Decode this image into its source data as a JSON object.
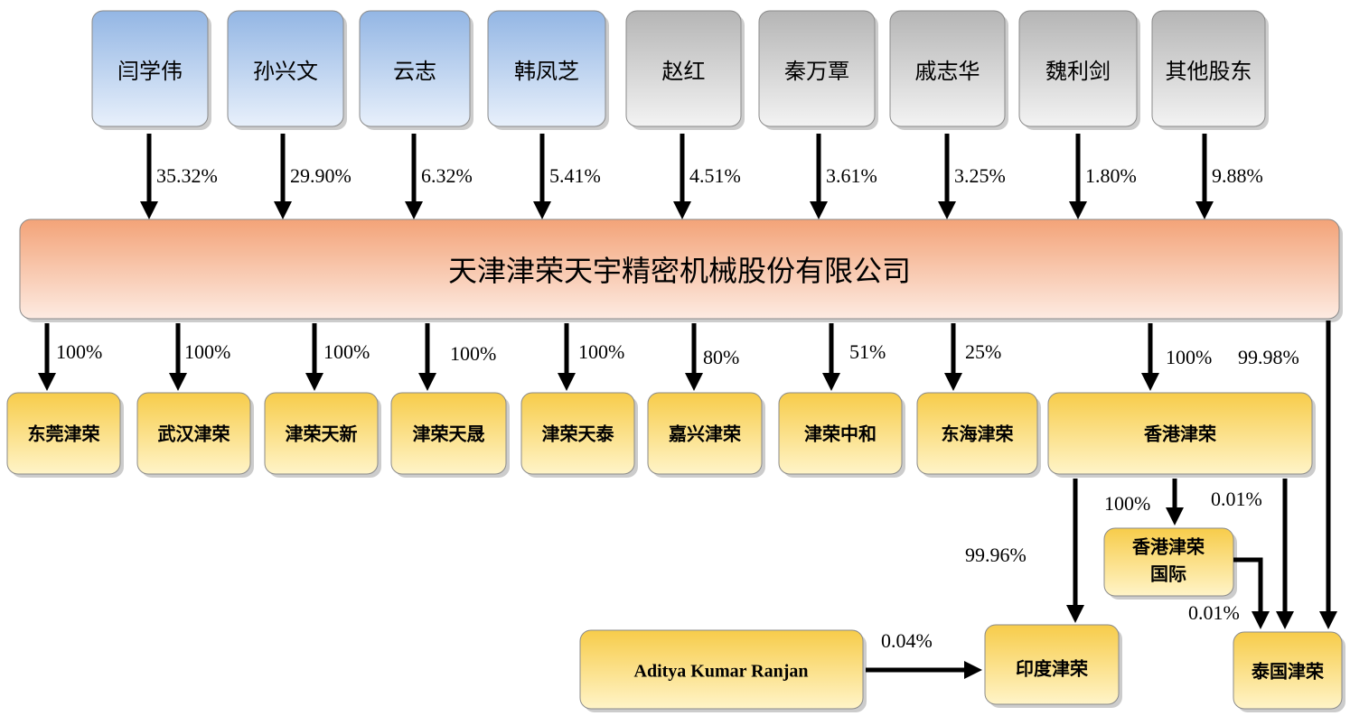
{
  "company": "天津津荣天宇精密机械股份有限公司",
  "shareholders": [
    {
      "name": "闫学伟",
      "share": "35.32%"
    },
    {
      "name": "孙兴文",
      "share": "29.90%"
    },
    {
      "name": "云志",
      "share": "6.32%"
    },
    {
      "name": "韩凤芝",
      "share": "5.41%"
    },
    {
      "name": "赵红",
      "share": "4.51%"
    },
    {
      "name": "秦万覃",
      "share": "3.61%"
    },
    {
      "name": "戚志华",
      "share": "3.25%"
    },
    {
      "name": "魏利剑",
      "share": "1.80%"
    },
    {
      "name": "其他股东",
      "share": "9.88%"
    }
  ],
  "subsidiaries": [
    {
      "name": "东莞津荣",
      "share": "100%"
    },
    {
      "name": "武汉津荣",
      "share": "100%"
    },
    {
      "name": "津荣天新",
      "share": "100%"
    },
    {
      "name": "津荣天晟",
      "share": "100%"
    },
    {
      "name": "津荣天泰",
      "share": "100%"
    },
    {
      "name": "嘉兴津荣",
      "share": "80%"
    },
    {
      "name": "津荣中和",
      "share": "51%"
    },
    {
      "name": "东海津荣",
      "share": "25%"
    },
    {
      "name": "香港津荣",
      "share": "100%"
    }
  ],
  "hk_international": {
    "name": [
      "香港津荣",
      "国际"
    ],
    "share": "100%"
  },
  "india": {
    "name": "印度津荣",
    "hk_share": "99.96%",
    "partner": "Aditya Kumar Ranjan",
    "partner_share": "0.04%"
  },
  "thailand": {
    "name": "泰国津荣",
    "company_share": "99.98%",
    "hk_share": "0.01%",
    "hk_international_share": "0.01%"
  }
}
